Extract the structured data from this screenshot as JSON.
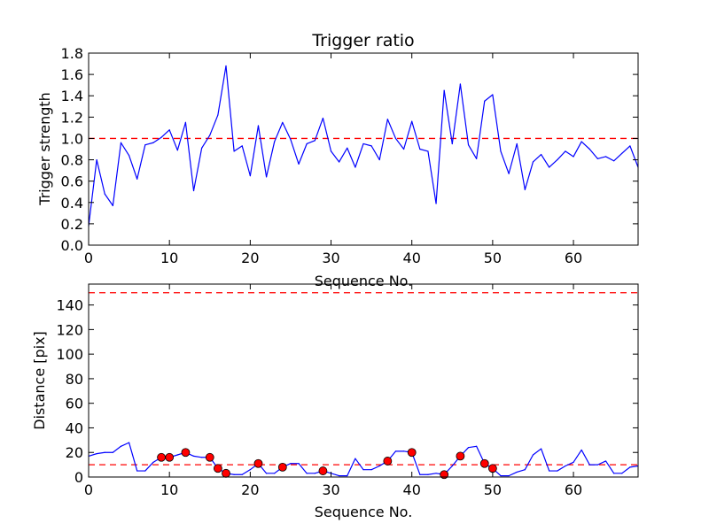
{
  "chart_data": [
    {
      "type": "line",
      "title": "Trigger ratio",
      "xlabel": "Sequence No.",
      "ylabel": "Trigger strength",
      "xlim": [
        0,
        68
      ],
      "ylim": [
        0,
        1.8
      ],
      "xticks": [
        0,
        10,
        20,
        30,
        40,
        50,
        60
      ],
      "yticks": [
        0.0,
        0.2,
        0.4,
        0.6,
        0.8,
        1.0,
        1.2,
        1.4,
        1.6,
        1.8
      ],
      "xtick_labels": [
        "0",
        "10",
        "20",
        "30",
        "40",
        "50",
        "60"
      ],
      "ytick_labels": [
        "0.0",
        "0.2",
        "0.4",
        "0.6",
        "0.8",
        "1.0",
        "1.2",
        "1.4",
        "1.6",
        "1.8"
      ],
      "grid": false,
      "series": [
        {
          "color": "#0000ff",
          "x": [
            0,
            1,
            2,
            3,
            4,
            5,
            6,
            7,
            8,
            9,
            10,
            11,
            12,
            13,
            14,
            15,
            16,
            17,
            18,
            19,
            20,
            21,
            22,
            23,
            24,
            25,
            26,
            27,
            28,
            29,
            30,
            31,
            32,
            33,
            34,
            35,
            36,
            37,
            38,
            39,
            40,
            41,
            42,
            43,
            44,
            45,
            46,
            47,
            48,
            49,
            50,
            51,
            52,
            53,
            54,
            55,
            56,
            57,
            58,
            59,
            60,
            61,
            62,
            63,
            64,
            65,
            66,
            67,
            68
          ],
          "values": [
            0.18,
            0.8,
            0.48,
            0.37,
            0.96,
            0.84,
            0.62,
            0.94,
            0.96,
            1.01,
            1.08,
            0.89,
            1.15,
            0.51,
            0.91,
            1.03,
            1.22,
            1.68,
            0.88,
            0.93,
            0.65,
            1.12,
            0.64,
            0.97,
            1.15,
            0.99,
            0.76,
            0.95,
            0.98,
            1.19,
            0.88,
            0.78,
            0.91,
            0.73,
            0.95,
            0.93,
            0.8,
            1.18,
            1.0,
            0.9,
            1.16,
            0.9,
            0.88,
            0.39,
            1.45,
            0.95,
            1.51,
            0.94,
            0.81,
            1.35,
            1.41,
            0.88,
            0.67,
            0.95,
            0.52,
            0.78,
            0.85,
            0.73,
            0.8,
            0.88,
            0.83,
            0.97,
            0.9,
            0.81,
            0.83,
            0.79,
            0.86,
            0.93,
            0.73
          ]
        }
      ],
      "reference_lines": [
        {
          "y": 1.0,
          "color": "#ff0000",
          "style": "dashed"
        }
      ]
    },
    {
      "type": "line",
      "title": "",
      "xlabel": "Sequence No.",
      "ylabel": "Distance [pix]",
      "xlim": [
        0,
        68
      ],
      "ylim": [
        0,
        157
      ],
      "xticks": [
        0,
        10,
        20,
        30,
        40,
        50,
        60
      ],
      "yticks": [
        0,
        20,
        40,
        60,
        80,
        100,
        120,
        140
      ],
      "xtick_labels": [
        "0",
        "10",
        "20",
        "30",
        "40",
        "50",
        "60"
      ],
      "ytick_labels": [
        "0",
        "20",
        "40",
        "60",
        "80",
        "100",
        "120",
        "140"
      ],
      "grid": false,
      "series": [
        {
          "color": "#0000ff",
          "x": [
            0,
            1,
            2,
            3,
            4,
            5,
            6,
            7,
            8,
            9,
            10,
            11,
            12,
            13,
            14,
            15,
            16,
            17,
            18,
            19,
            20,
            21,
            22,
            23,
            24,
            25,
            26,
            27,
            28,
            29,
            30,
            31,
            32,
            33,
            34,
            35,
            36,
            37,
            38,
            39,
            40,
            41,
            42,
            43,
            44,
            45,
            46,
            47,
            48,
            49,
            50,
            51,
            52,
            53,
            54,
            55,
            56,
            57,
            58,
            59,
            60,
            61,
            62,
            63,
            64,
            65,
            66,
            67,
            68
          ],
          "values": [
            17,
            19,
            20,
            20,
            25,
            28,
            5,
            5,
            12,
            16,
            16,
            18,
            20,
            17,
            16,
            16,
            7,
            3,
            2,
            2,
            6,
            11,
            3,
            3,
            8,
            11,
            11,
            3,
            3,
            5,
            3,
            1,
            1,
            15,
            6,
            6,
            9,
            13,
            21,
            21,
            20,
            2,
            2,
            3,
            2,
            9,
            17,
            24,
            25,
            11,
            7,
            1,
            1,
            4,
            6,
            18,
            23,
            5,
            5,
            9,
            12,
            22,
            10,
            10,
            13,
            3,
            3,
            8,
            9
          ]
        }
      ],
      "markers": {
        "color": "#ff0000",
        "x": [
          9,
          10,
          12,
          15,
          16,
          17,
          21,
          24,
          29,
          37,
          40,
          44,
          46,
          49,
          50
        ],
        "values": [
          16,
          16,
          20,
          16,
          7,
          3,
          11,
          8,
          5,
          13,
          20,
          2,
          17,
          11,
          7
        ]
      },
      "reference_lines": [
        {
          "y": 150,
          "color": "#ff0000",
          "style": "dashed"
        },
        {
          "y": 10,
          "color": "#ff0000",
          "style": "dashed"
        }
      ]
    }
  ]
}
